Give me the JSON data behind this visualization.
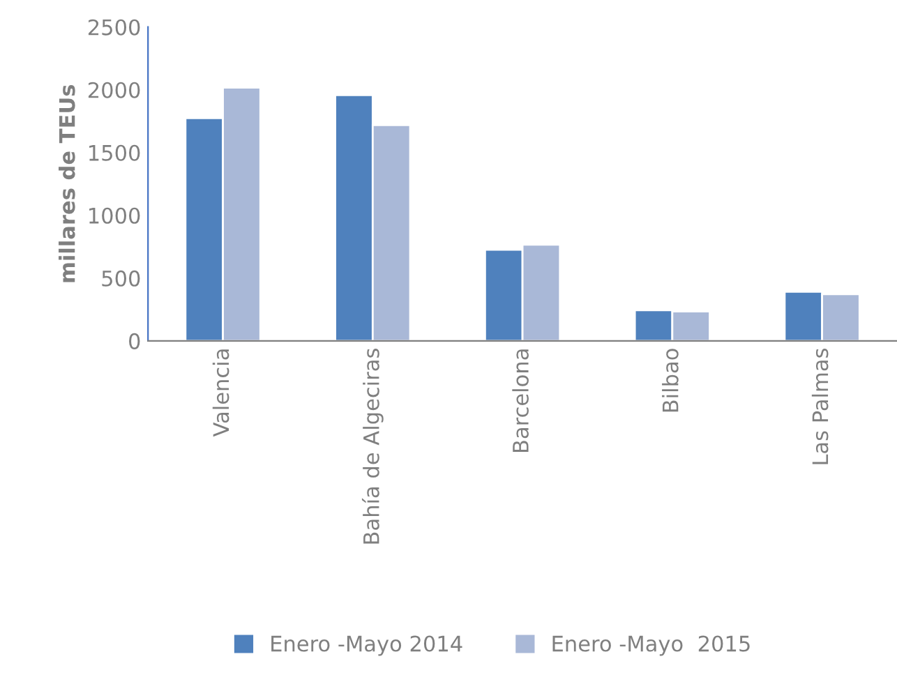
{
  "chart_data": {
    "type": "bar",
    "ylabel": "millares de TEUs",
    "categories": [
      "Valencia",
      "Bahía de Algeciras",
      "Barcelona",
      "Bilbao",
      "Las Palmas"
    ],
    "series": [
      {
        "name": "Enero -Mayo 2014",
        "color": "#4f81bd",
        "values": [
          1774,
          1958,
          726,
          244,
          391
        ]
      },
      {
        "name": "Enero -Mayo  2015",
        "color": "#a9b8d7",
        "values": [
          2017,
          1719,
          767,
          234,
          372
        ]
      }
    ],
    "ylim": [
      0,
      2500
    ],
    "yticks": [
      0,
      500,
      1000,
      1500,
      2000,
      2500
    ],
    "grid": false,
    "legend": "bottom"
  }
}
